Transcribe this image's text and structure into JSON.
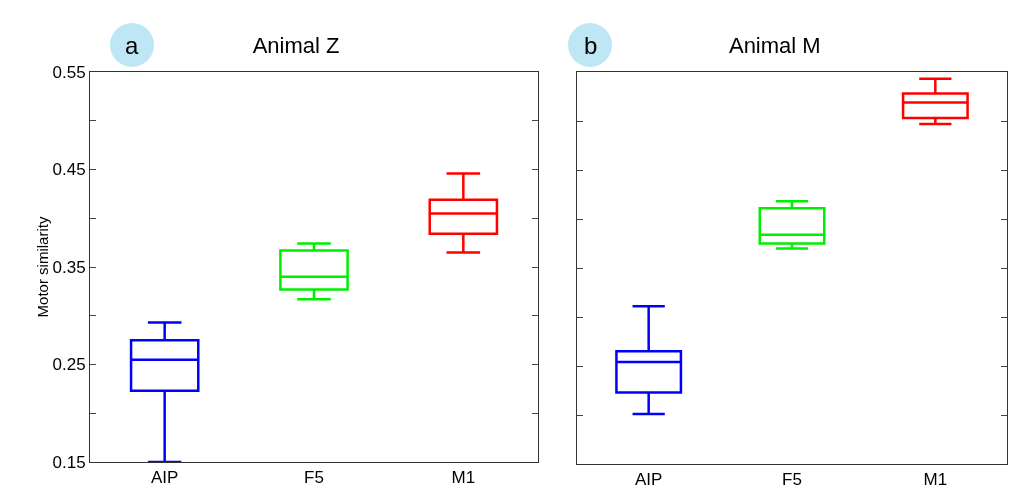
{
  "chart_data": [
    {
      "type": "box",
      "title": "Animal Z",
      "ylabel": "Motor similarity",
      "annotations": [
        "a"
      ],
      "categories": [
        "AIP",
        "F5",
        "M1"
      ],
      "colors": [
        "#0000ff",
        "#00ee00",
        "#ff0000"
      ],
      "boxes": [
        {
          "low": 0.15,
          "q1": 0.223,
          "median": 0.255,
          "q3": 0.275,
          "high": 0.293
        },
        {
          "low": 0.317,
          "q1": 0.327,
          "median": 0.34,
          "q3": 0.367,
          "high": 0.374
        },
        {
          "low": 0.365,
          "q1": 0.384,
          "median": 0.405,
          "q3": 0.419,
          "high": 0.446
        }
      ],
      "ylim": [
        0.15,
        0.55
      ],
      "yticks": [
        0.15,
        {
          "value": 0.2,
          "label": null
        },
        0.25,
        {
          "value": 0.3,
          "label": null
        },
        0.35,
        {
          "value": 0.4,
          "label": null
        },
        0.45,
        {
          "value": 0.5,
          "label": null
        },
        0.55
      ],
      "grid": false
    },
    {
      "type": "box",
      "title": "Animal M",
      "annotations": [
        "b"
      ],
      "categories": [
        "AIP",
        "F5",
        "M1"
      ],
      "colors": [
        "#0000ff",
        "#00ee00",
        "#ff0000"
      ],
      "boxes": [
        {
          "low": 0.201,
          "q1": 0.223,
          "median": 0.254,
          "q3": 0.265,
          "high": 0.311
        },
        {
          "low": 0.37,
          "q1": 0.375,
          "median": 0.384,
          "q3": 0.411,
          "high": 0.418
        },
        {
          "low": 0.497,
          "q1": 0.503,
          "median": 0.519,
          "q3": 0.528,
          "high": 0.543
        }
      ],
      "ylim": [
        0.15,
        0.55
      ],
      "yticks": [
        0.15,
        0.2,
        0.25,
        0.3,
        0.35,
        0.4,
        0.45,
        0.5,
        0.55
      ],
      "tick_labels": "x",
      "grid": false
    }
  ]
}
